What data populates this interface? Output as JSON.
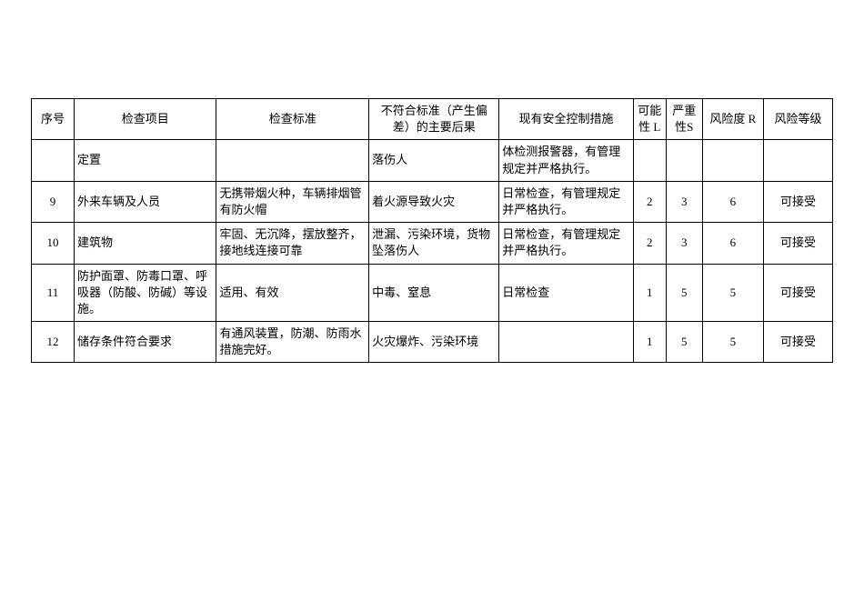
{
  "table": {
    "columns": [
      {
        "key": "seq",
        "label": "序号",
        "class": "col-seq",
        "align": "center"
      },
      {
        "key": "item",
        "label": "检查项目",
        "class": "col-item",
        "align": "center"
      },
      {
        "key": "std",
        "label": "检查标准",
        "class": "col-std",
        "align": "center"
      },
      {
        "key": "cons",
        "label": "不符合标准（产生偏差）的主要后果",
        "class": "col-cons",
        "align": "center"
      },
      {
        "key": "ctrl",
        "label": "现有安全控制措施",
        "class": "col-ctrl",
        "align": "center"
      },
      {
        "key": "L",
        "label": "可能性 L",
        "class": "col-L",
        "align": "center"
      },
      {
        "key": "S",
        "label": "严重性S",
        "class": "col-S",
        "align": "center"
      },
      {
        "key": "R",
        "label": "风险度 R",
        "class": "col-R",
        "align": "center"
      },
      {
        "key": "lvl",
        "label": "风险等级",
        "class": "col-lvl",
        "align": "center"
      }
    ],
    "rows": [
      {
        "seq": "",
        "item": "定置",
        "std": "",
        "cons": "落伤人",
        "ctrl": "体检测报警器，有管理规定并严格执行。",
        "L": "",
        "S": "",
        "R": "",
        "lvl": ""
      },
      {
        "seq": "9",
        "item": "外来车辆及人员",
        "std": "无携带烟火种，车辆排烟管有防火帽",
        "cons": "着火源导致火灾",
        "ctrl": "日常检查，有管理规定并严格执行。",
        "L": "2",
        "S": "3",
        "R": "6",
        "lvl": "可接受"
      },
      {
        "seq": "10",
        "item": "建筑物",
        "std": "牢固、无沉降，摆放整齐，接地线连接可靠",
        "cons": "泄漏、污染环境，货物坠落伤人",
        "ctrl": "日常检查，有管理规定并严格执行。",
        "L": "2",
        "S": "3",
        "R": "6",
        "lvl": "可接受"
      },
      {
        "seq": "11",
        "item": "防护面罩、防毒口罩、呼吸器（防酸、防碱）等设施。",
        "std": "适用、有效",
        "cons": "中毒、窒息",
        "ctrl": "日常检查",
        "L": "1",
        "S": "5",
        "R": "5",
        "lvl": "可接受"
      },
      {
        "seq": "12",
        "item": "储存条件符合要求",
        "std": "有通风装置，防潮、防雨水措施完好。",
        "cons": "火灾爆炸、污染环境",
        "ctrl": "",
        "L": "1",
        "S": "5",
        "R": "5",
        "lvl": "可接受"
      }
    ],
    "cell_align": {
      "seq": "center",
      "item": "left",
      "std": "left",
      "cons": "left",
      "ctrl": "left",
      "L": "center",
      "S": "center",
      "R": "center",
      "lvl": "center"
    }
  }
}
